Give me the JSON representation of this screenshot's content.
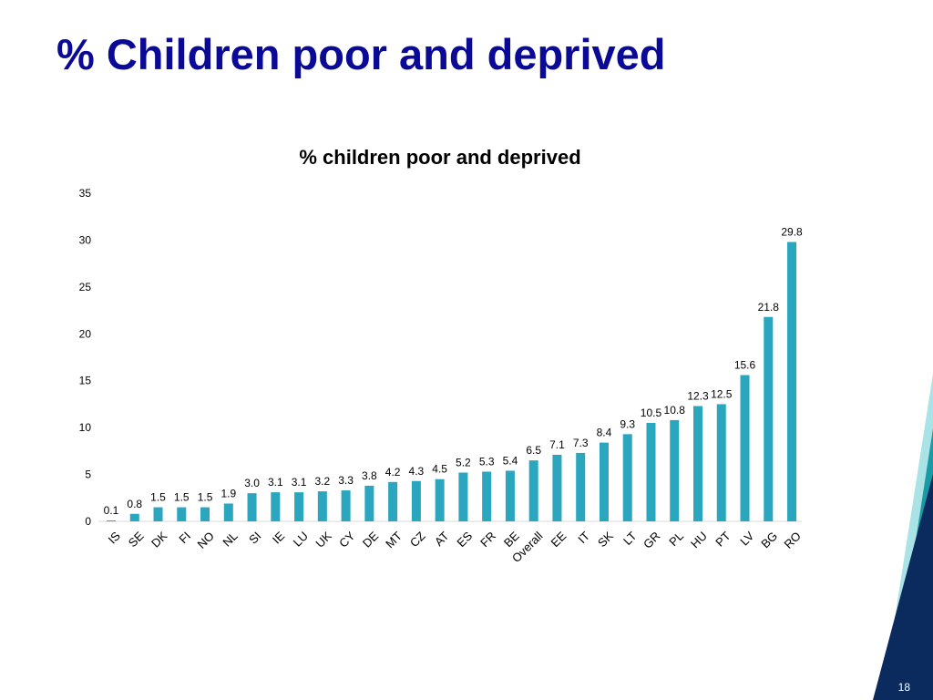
{
  "slide": {
    "title": "% Children poor and deprived",
    "page_number": "18"
  },
  "colors": {
    "title": "#0a0a96",
    "bar": "#2aa6bf",
    "navy": "#0b2a5e",
    "teal": "#1a9aa4",
    "light_teal": "#a9e3e6"
  },
  "chart_data": {
    "type": "bar",
    "title": "% children poor and deprived",
    "xlabel": "",
    "ylabel": "",
    "ylim": [
      0,
      35
    ],
    "yticks": [
      0,
      5,
      10,
      15,
      20,
      25,
      30,
      35
    ],
    "grid": false,
    "legend": "none",
    "categories": [
      "IS",
      "SE",
      "DK",
      "FI",
      "NO",
      "NL",
      "SI",
      "IE",
      "LU",
      "UK",
      "CY",
      "DE",
      "MT",
      "CZ",
      "AT",
      "ES",
      "FR",
      "BE",
      "Overall",
      "EE",
      "IT",
      "SK",
      "LT",
      "GR",
      "PL",
      "HU",
      "PT",
      "LV",
      "BG",
      "RO"
    ],
    "values": [
      0.1,
      0.8,
      1.5,
      1.5,
      1.5,
      1.9,
      3.0,
      3.1,
      3.1,
      3.2,
      3.3,
      3.8,
      4.2,
      4.3,
      4.5,
      5.2,
      5.3,
      5.4,
      6.5,
      7.1,
      7.3,
      8.4,
      9.3,
      10.5,
      10.8,
      12.3,
      12.5,
      15.6,
      21.8,
      29.8
    ],
    "value_labels": [
      "0.1",
      "0.8",
      "1.5",
      "1.5",
      "1.5",
      "1.9",
      "3.0",
      "3.1",
      "3.1",
      "3.2",
      "3.3",
      "3.8",
      "4.2",
      "4.3",
      "4.5",
      "5.2",
      "5.3",
      "5.4",
      "6.5",
      "7.1",
      "7.3",
      "8.4",
      "9.3",
      "10.5",
      "10.8",
      "12.3",
      "12.5",
      "15.6",
      "21.8",
      "29.8"
    ]
  }
}
